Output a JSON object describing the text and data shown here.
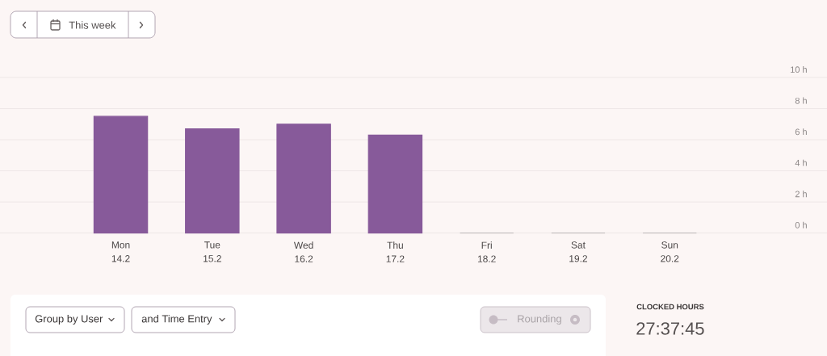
{
  "chart_data": {
    "type": "bar",
    "categories": [
      "Mon 14.2",
      "Tue 15.2",
      "Wed 16.2",
      "Thu 17.2",
      "Fri 18.2",
      "Sat 19.2",
      "Sun 20.2"
    ],
    "values": [
      7.5,
      6.7,
      7.0,
      6.3,
      0,
      0,
      0
    ],
    "colors": [
      "#875a9a",
      "#875a9a",
      "#875a9a",
      "#875a9a",
      "#c9c4c4",
      "#c9c4c4",
      "#c9c4c4"
    ],
    "ylim": [
      0,
      10
    ],
    "yticks": [
      {
        "value": 0,
        "label": "0 h"
      },
      {
        "value": 2,
        "label": "2 h"
      },
      {
        "value": 4,
        "label": "4 h"
      },
      {
        "value": 6,
        "label": "6 h"
      },
      {
        "value": 8,
        "label": "8 h"
      },
      {
        "value": 10,
        "label": "10 h"
      }
    ],
    "grid": "y",
    "annotations": [
      "This week",
      "Group by User",
      "and Time Entry",
      "Rounding",
      "CLOCKED HOURS",
      "27:37:45"
    ]
  }
}
